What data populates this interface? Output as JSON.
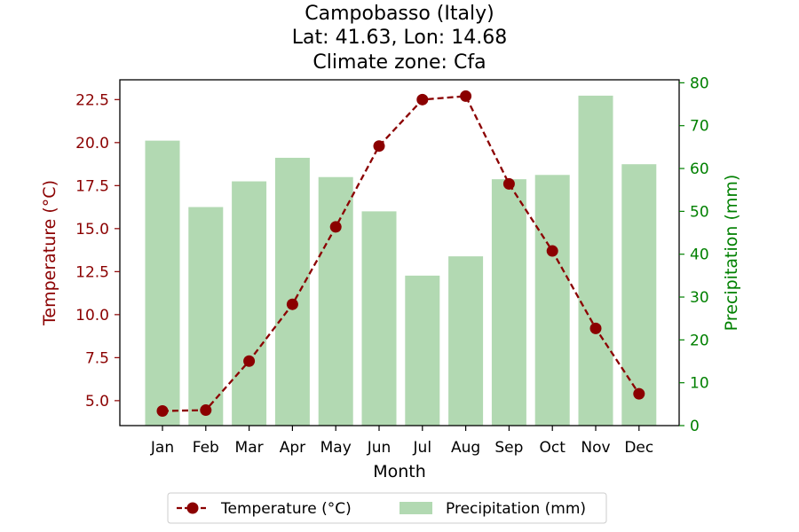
{
  "chart_data": {
    "type": "bar",
    "title_lines": [
      "Campobasso (Italy)",
      "Lat: 41.63, Lon: 14.68",
      "Climate zone: Cfa"
    ],
    "xlabel": "Month",
    "ylabel_left": "Temperature (°C)",
    "ylabel_right": "Precipitation (mm)",
    "categories": [
      "Jan",
      "Feb",
      "Mar",
      "Apr",
      "May",
      "Jun",
      "Jul",
      "Aug",
      "Sep",
      "Oct",
      "Nov",
      "Dec"
    ],
    "series": [
      {
        "name": "Temperature (°C)",
        "type": "line",
        "axis": "left",
        "color": "#8b0000",
        "values": [
          4.4,
          4.45,
          7.3,
          10.6,
          15.1,
          19.8,
          22.5,
          22.7,
          17.6,
          13.7,
          9.2,
          5.4
        ]
      },
      {
        "name": "Precipitation (mm)",
        "type": "bar",
        "axis": "right",
        "color": "#b2d9b2",
        "values": [
          66.5,
          51,
          57,
          62.5,
          58,
          50,
          35,
          39.5,
          57.5,
          58.5,
          77,
          61
        ]
      }
    ],
    "ylim_left": [
      3.55,
      23.65
    ],
    "yticks_left": [
      "5.0",
      "7.5",
      "10.0",
      "12.5",
      "15.0",
      "17.5",
      "20.0",
      "22.5"
    ],
    "ylim_right": [
      0,
      80.7
    ],
    "yticks_right": [
      "0",
      "10",
      "20",
      "30",
      "40",
      "50",
      "60",
      "70",
      "80"
    ],
    "left_axis_color": "#8b0000",
    "right_axis_color": "#008000",
    "grid": false,
    "legend_position": "bottom-center"
  }
}
